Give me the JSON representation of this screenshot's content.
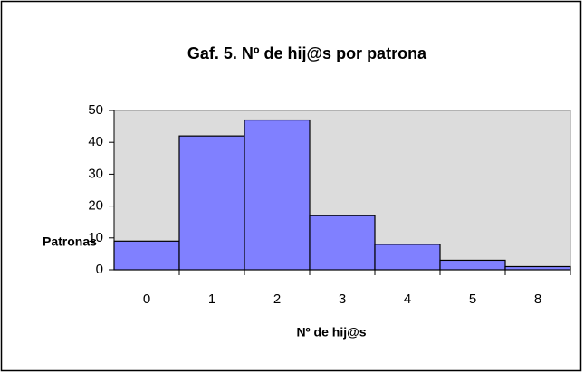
{
  "chart_data": {
    "type": "bar",
    "title": "Gaf. 5. Nº de hij@s por patrona",
    "x_label": "Nº de hij@s",
    "y_label": "Patronas",
    "categories": [
      "0",
      "1",
      "2",
      "3",
      "4",
      "5",
      "8"
    ],
    "values": [
      9,
      42,
      47,
      17,
      8,
      3,
      1
    ],
    "color": "#8080ff",
    "ylim": [
      0,
      50
    ],
    "yticks": [
      0,
      10,
      20,
      30,
      40,
      50
    ],
    "grid": false
  }
}
